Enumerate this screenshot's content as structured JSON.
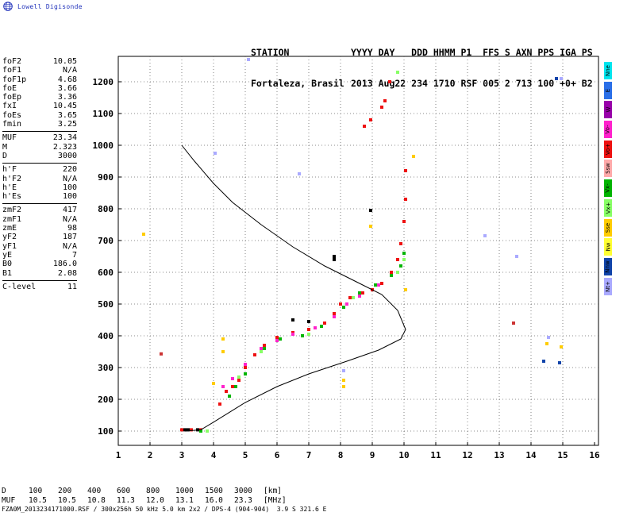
{
  "header": {
    "logo_text": "Lowell Digisonde",
    "station_label": "STATION",
    "time_labels": "YYYY DAY   DDD HHMM P1  FFS S AXN PPS IGA PS",
    "station_value": "Fortaleza, Brasil",
    "time_values": "2013 Aug22 234 1710 RSF 005 2 713 100 +0+ B2"
  },
  "params_groups": [
    [
      {
        "name": "foF2",
        "value": "10.05"
      },
      {
        "name": "foF1",
        "value": "N/A"
      },
      {
        "name": "foF1p",
        "value": "4.68"
      },
      {
        "name": "foE",
        "value": "3.66"
      },
      {
        "name": "foEp",
        "value": "3.36"
      },
      {
        "name": "fxI",
        "value": "10.45"
      },
      {
        "name": "foEs",
        "value": "3.65"
      },
      {
        "name": "fmin",
        "value": "3.25"
      }
    ],
    [
      {
        "name": "MUF",
        "value": "23.34"
      },
      {
        "name": "M",
        "value": "2.323"
      },
      {
        "name": "D",
        "value": "3000"
      }
    ],
    [
      {
        "name": "h'F",
        "value": "220"
      },
      {
        "name": "h'F2",
        "value": "N/A"
      },
      {
        "name": "h'E",
        "value": "100"
      },
      {
        "name": "h'Es",
        "value": "100"
      }
    ],
    [
      {
        "name": "zmF2",
        "value": "417"
      },
      {
        "name": "zmF1",
        "value": "N/A"
      },
      {
        "name": "zmE",
        "value": "98"
      },
      {
        "name": "yF2",
        "value": "187"
      },
      {
        "name": "yF1",
        "value": "N/A"
      },
      {
        "name": "yE",
        "value": "7"
      },
      {
        "name": "B0",
        "value": "186.0"
      },
      {
        "name": "B1",
        "value": "2.08"
      }
    ],
    [
      {
        "name": "C-level",
        "value": "11"
      }
    ]
  ],
  "legend": [
    {
      "label": "Nne",
      "color": "#00e5ee"
    },
    {
      "label": "E",
      "color": "#2a6fe8"
    },
    {
      "label": "W",
      "color": "#9900aa"
    },
    {
      "label": "Vo-",
      "color": "#ff22cc"
    },
    {
      "label": "Vo+",
      "color": "#ee1111"
    },
    {
      "label": "Ssw",
      "color": "#ffaaaa"
    },
    {
      "label": "Vx-",
      "color": "#00b400"
    },
    {
      "label": "Vx+",
      "color": "#88ff66"
    },
    {
      "label": "Sse",
      "color": "#ffcc00"
    },
    {
      "label": "Nw",
      "color": "#ffff33"
    },
    {
      "label": "Nnw",
      "color": "#1144aa"
    },
    {
      "label": "Nt+",
      "color": "#aaaaff"
    }
  ],
  "muf_table": {
    "d_label": "D",
    "muf_label": "MUF",
    "d_values": [
      "100",
      "200",
      "400",
      "600",
      "800",
      "1000",
      "1500",
      "3000"
    ],
    "muf_values": [
      "10.5",
      "10.5",
      "10.8",
      "11.3",
      "12.0",
      "13.1",
      "16.0",
      "23.3"
    ],
    "d_unit": "[km]",
    "muf_unit": "[MHz]"
  },
  "footer": {
    "filename": "FZA0M_2013234171000.RSF / 300x256h 50 kHz 5.0 km 2x2 / DPS-4 (904-904)  3.9 S 321.6 E"
  },
  "chart_data": {
    "type": "scatter",
    "title": "",
    "xlabel": "",
    "ylabel": "",
    "xlim": [
      1,
      16
    ],
    "ylim": [
      75,
      1275
    ],
    "xticks": [
      1,
      2,
      3,
      4,
      5,
      6,
      7,
      8,
      9,
      10,
      11,
      12,
      13,
      14,
      15,
      16
    ],
    "yticks": [
      100,
      200,
      300,
      400,
      500,
      600,
      700,
      800,
      900,
      1000,
      1100,
      1200
    ],
    "grid": "dotted",
    "series": [
      {
        "color": "#ee1111",
        "points": [
          [
            3.0,
            104
          ],
          [
            3.3,
            104
          ],
          [
            3.6,
            104
          ],
          [
            4.2,
            185
          ],
          [
            4.4,
            225
          ],
          [
            4.6,
            240
          ],
          [
            4.8,
            260
          ],
          [
            5.0,
            300
          ],
          [
            5.3,
            340
          ],
          [
            5.6,
            370
          ],
          [
            6.0,
            395
          ],
          [
            6.5,
            410
          ],
          [
            7.0,
            420
          ],
          [
            7.5,
            440
          ],
          [
            7.8,
            470
          ],
          [
            8.0,
            500
          ],
          [
            8.3,
            520
          ],
          [
            8.7,
            535
          ],
          [
            9.0,
            545
          ],
          [
            9.3,
            565
          ],
          [
            9.6,
            600
          ],
          [
            9.8,
            640
          ],
          [
            9.9,
            690
          ],
          [
            10.0,
            760
          ],
          [
            10.05,
            830
          ],
          [
            10.05,
            920
          ],
          [
            8.75,
            1060
          ],
          [
            8.95,
            1080
          ],
          [
            9.3,
            1120
          ],
          [
            9.4,
            1140
          ],
          [
            9.55,
            1200
          ]
        ]
      },
      {
        "color": "#ff22cc",
        "points": [
          [
            4.3,
            240
          ],
          [
            4.6,
            265
          ],
          [
            5.0,
            310
          ],
          [
            5.5,
            360
          ],
          [
            6.0,
            385
          ],
          [
            6.5,
            405
          ],
          [
            7.2,
            425
          ],
          [
            7.8,
            460
          ],
          [
            8.2,
            500
          ],
          [
            8.6,
            525
          ],
          [
            9.2,
            560
          ]
        ]
      },
      {
        "color": "#00b400",
        "points": [
          [
            3.6,
            100
          ],
          [
            4.5,
            210
          ],
          [
            4.7,
            240
          ],
          [
            5.0,
            280
          ],
          [
            5.6,
            360
          ],
          [
            6.1,
            390
          ],
          [
            6.8,
            400
          ],
          [
            7.4,
            430
          ],
          [
            8.1,
            490
          ],
          [
            8.6,
            535
          ],
          [
            9.1,
            560
          ],
          [
            9.6,
            590
          ],
          [
            9.9,
            620
          ],
          [
            10.0,
            660
          ]
        ]
      },
      {
        "color": "#88ff66",
        "points": [
          [
            3.8,
            100
          ],
          [
            4.8,
            270
          ],
          [
            5.5,
            350
          ],
          [
            7.0,
            405
          ],
          [
            8.4,
            520
          ],
          [
            9.8,
            600
          ],
          [
            10.0,
            640
          ],
          [
            9.8,
            1230
          ]
        ]
      },
      {
        "color": "#000000",
        "points": [
          [
            3.1,
            104
          ],
          [
            3.2,
            104
          ],
          [
            3.5,
            104
          ],
          [
            7.8,
            650
          ],
          [
            7.8,
            640
          ],
          [
            8.95,
            795
          ],
          [
            6.5,
            450
          ],
          [
            7.0,
            445
          ]
        ]
      },
      {
        "color": "#ffcc00",
        "points": [
          [
            4.3,
            390
          ],
          [
            4.3,
            350
          ],
          [
            4.0,
            250
          ],
          [
            8.1,
            260
          ],
          [
            8.1,
            240
          ],
          [
            8.95,
            745
          ],
          [
            10.05,
            545
          ],
          [
            10.3,
            965
          ],
          [
            14.5,
            375
          ],
          [
            14.95,
            365
          ],
          [
            1.8,
            720
          ]
        ]
      },
      {
        "color": "#aaaaff",
        "points": [
          [
            4.05,
            975
          ],
          [
            5.1,
            1270
          ],
          [
            6.7,
            910
          ],
          [
            12.55,
            715
          ],
          [
            13.55,
            650
          ],
          [
            14.95,
            1210
          ],
          [
            8.1,
            290
          ],
          [
            14.55,
            395
          ]
        ]
      },
      {
        "color": "#1144aa",
        "points": [
          [
            14.4,
            320
          ],
          [
            14.9,
            315
          ],
          [
            14.8,
            1210
          ]
        ]
      },
      {
        "color": "#cc3333",
        "points": [
          [
            2.35,
            343
          ],
          [
            13.45,
            440
          ]
        ]
      }
    ],
    "profile": {
      "color": "#000000",
      "points": [
        [
          3.0,
          1000
        ],
        [
          3.4,
          950
        ],
        [
          4.0,
          880
        ],
        [
          4.6,
          820
        ],
        [
          5.5,
          750
        ],
        [
          6.5,
          680
        ],
        [
          7.5,
          620
        ],
        [
          8.5,
          570
        ],
        [
          9.3,
          530
        ],
        [
          9.8,
          480
        ],
        [
          10.05,
          420
        ],
        [
          9.9,
          390
        ],
        [
          9.2,
          355
        ],
        [
          8.2,
          320
        ],
        [
          7.0,
          280
        ],
        [
          6.0,
          240
        ],
        [
          5.0,
          190
        ],
        [
          4.0,
          128
        ],
        [
          3.6,
          104
        ],
        [
          3.1,
          100
        ]
      ]
    }
  }
}
